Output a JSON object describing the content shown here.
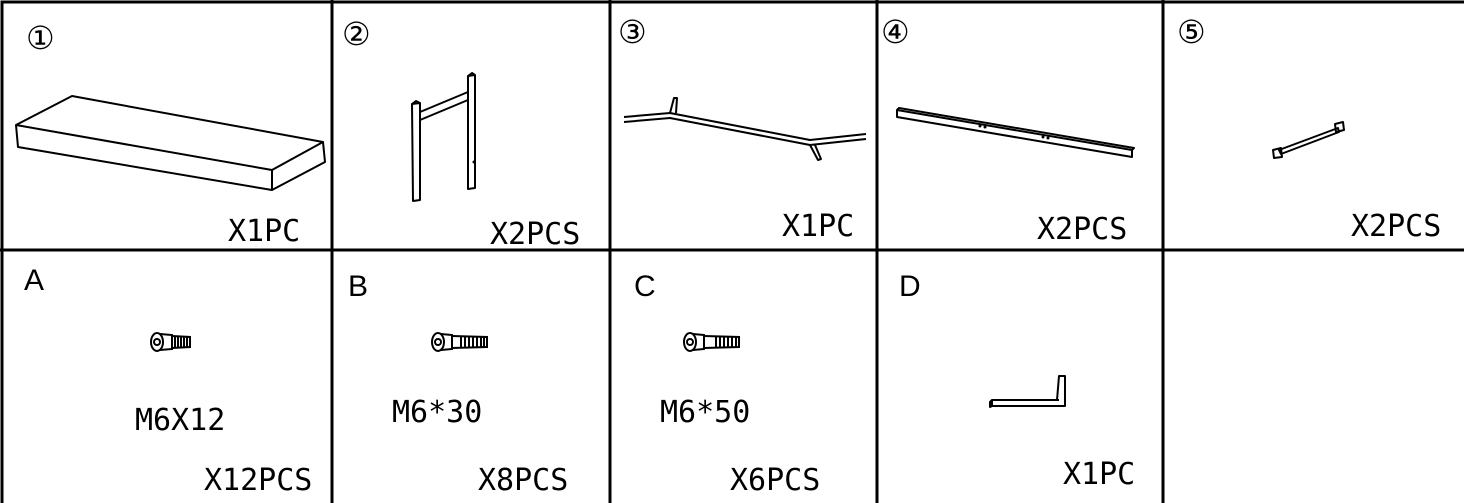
{
  "parts": [
    {
      "number": "①",
      "quantity": "X1PC",
      "icon": "board-icon"
    },
    {
      "number": "②",
      "quantity": "X2PCS",
      "icon": "leg-frame-icon"
    },
    {
      "number": "③",
      "quantity": "X1PC",
      "icon": "long-bar-icon"
    },
    {
      "number": "④",
      "quantity": "X2PCS",
      "icon": "side-rail-icon"
    },
    {
      "number": "⑤",
      "quantity": "X2PCS",
      "icon": "bracket-icon"
    }
  ],
  "hardware": [
    {
      "letter": "A",
      "spec": "M6X12",
      "quantity": "X12PCS",
      "icon": "short-bolt-icon"
    },
    {
      "letter": "B",
      "spec": "M6*30",
      "quantity": "X8PCS",
      "icon": "medium-bolt-icon"
    },
    {
      "letter": "C",
      "spec": "M6*50",
      "quantity": "X6PCS",
      "icon": "long-bolt-icon"
    },
    {
      "letter": "D",
      "spec": "",
      "quantity": "X1PC",
      "icon": "allen-key-icon"
    }
  ]
}
